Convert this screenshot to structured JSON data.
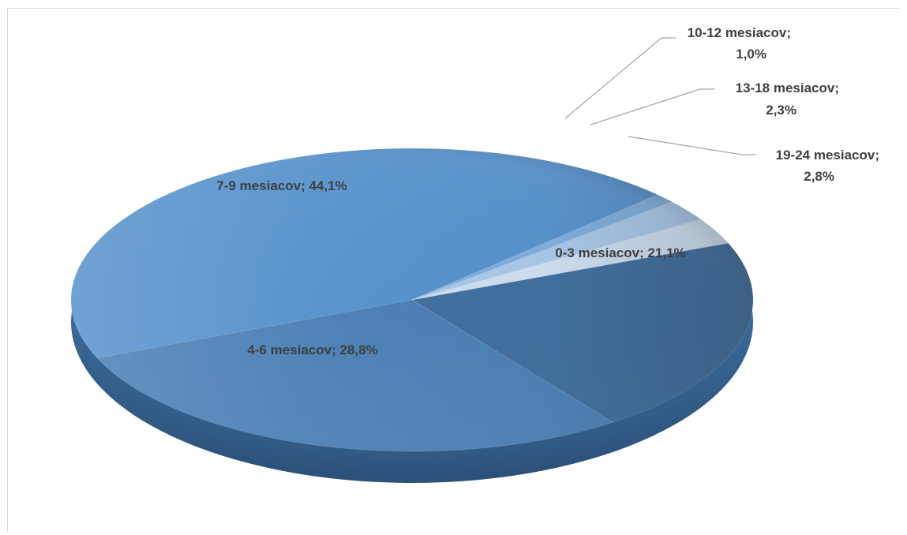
{
  "chart_data": {
    "type": "pie",
    "style": "3d",
    "title": "",
    "slices": [
      {
        "label": "0-3 mesiacov",
        "value": 21.1,
        "display": "21,1%",
        "color": "#3f6e9e"
      },
      {
        "label": "4-6 mesiacov",
        "value": 28.8,
        "display": "28,8%",
        "color": "#4a7fb5"
      },
      {
        "label": "7-9 mesiacov",
        "value": 44.1,
        "display": "44,1%",
        "color": "#5591cc"
      },
      {
        "label": "10-12 mesiacov",
        "value": 1.0,
        "display": "1,0%",
        "color": "#7eaede"
      },
      {
        "label": "13-18 mesiacov",
        "value": 2.3,
        "display": "2,3%",
        "color": "#a9c8ea"
      },
      {
        "label": "19-24 mesiacov",
        "value": 2.8,
        "display": "2,8%",
        "color": "#cfe0f3"
      }
    ],
    "labels": [
      {
        "text": "0-3 mesiacov; 21,1%"
      },
      {
        "text": "4-6 mesiacov; 28,8%"
      },
      {
        "text": "7-9 mesiacov; 44,1%"
      },
      {
        "line1": "10-12 mesiacov;",
        "line2": "1,0%"
      },
      {
        "line1": "13-18 mesiacov;",
        "line2": "2,3%"
      },
      {
        "line1": "19-24 mesiacov;",
        "line2": "2,8%"
      }
    ],
    "legend": "none",
    "data_labels": "category; percentage"
  }
}
